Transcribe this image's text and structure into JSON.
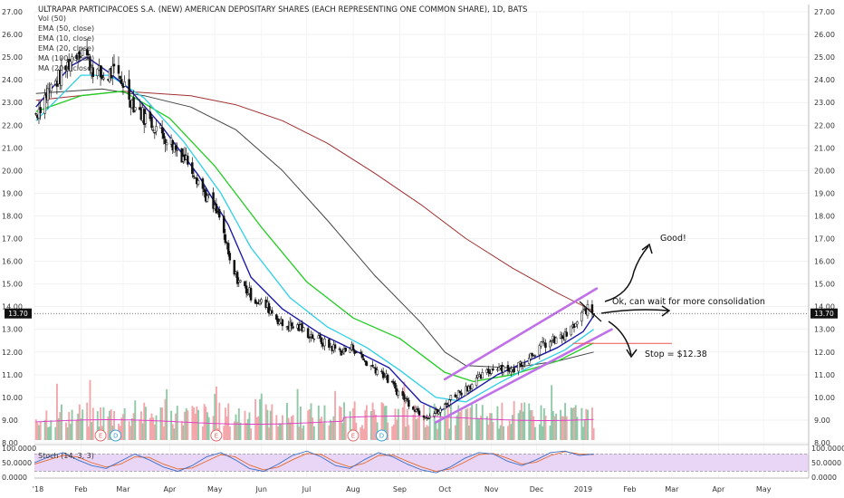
{
  "header": {
    "title": "ULTRAPAR PARTICIPACOES S.A. (NEW) AMERICAN DEPOSITARY SHARES (EACH REPRESENTING ONE COMMON SHARE), 1D, BATS"
  },
  "legend": {
    "items": [
      "Vol (50)",
      "EMA (50, close)",
      "EMA (10, close)",
      "EMA (20, close)",
      "MA (100, close)",
      "MA (200, close)"
    ]
  },
  "colors": {
    "up": "#26a69a",
    "down": "#ef5350",
    "candle": "#111111",
    "vol_up": "#8fc9a7",
    "vol_down": "#f3a7ab",
    "vol_ma": "#e040c8",
    "ema10": "#1a1aa6",
    "ema20": "#2ecfe8",
    "ema50": "#22cc22",
    "ma100": "#444444",
    "ma200": "#a03030",
    "channel": "#c070e8",
    "annotation": "#111111",
    "stoch_bg": "#e9d6f7",
    "stoch_k": "#3b6fc6",
    "stoch_d": "#e36a2e",
    "price_box": "#111111"
  },
  "current_price": {
    "label": "13.70",
    "value": 13.7
  },
  "annotations": {
    "good": "Good!",
    "consolidation": "Ok, can wait for more consolidation",
    "stop": "Stop = $12.38"
  },
  "events": {
    "badges": [
      "E",
      "D",
      "E",
      "E",
      "D"
    ]
  },
  "stoch": {
    "label": "Stoch (14, 3, 3)",
    "ticks": [
      "100.0000",
      "50.0000",
      "0.0000"
    ]
  },
  "chart_data": {
    "type": "candlestick",
    "title": "ULTRAPAR PARTICIPACOES S.A. (NEW) AMERICAN DEPOSITARY SHARES (EACH REPRESENTING ONE COMMON SHARE), 1D, BATS",
    "x_ticks": [
      "'18",
      "Feb",
      "Mar",
      "Apr",
      "May",
      "Jun",
      "Jul",
      "Aug",
      "Sep",
      "Oct",
      "Nov",
      "Dec",
      "2019",
      "Feb",
      "Mar",
      "Apr",
      "May"
    ],
    "y_ticks": [
      "27.00",
      "26.00",
      "25.00",
      "24.00",
      "23.00",
      "22.00",
      "21.00",
      "20.00",
      "19.00",
      "18.00",
      "17.00",
      "16.00",
      "15.00",
      "14.00",
      "13.00",
      "12.00",
      "11.00",
      "10.00",
      "9.00",
      "8.00"
    ],
    "ylim": [
      8,
      27
    ],
    "x_start": "2018-01-01",
    "x_end": "2019-05-31",
    "price_path": [
      [
        "2018-01-02",
        22.5
      ],
      [
        "2018-01-10",
        23.5
      ],
      [
        "2018-01-20",
        24.3
      ],
      [
        "2018-01-28",
        25.2
      ],
      [
        "2018-02-02",
        25.4
      ],
      [
        "2018-02-08",
        24.6
      ],
      [
        "2018-02-15",
        24.1
      ],
      [
        "2018-02-22",
        24.3
      ],
      [
        "2018-03-01",
        23.9
      ],
      [
        "2018-03-08",
        22.9
      ],
      [
        "2018-03-15",
        22.4
      ],
      [
        "2018-03-25",
        21.8
      ],
      [
        "2018-04-05",
        21.0
      ],
      [
        "2018-04-15",
        20.3
      ],
      [
        "2018-04-25",
        18.9
      ],
      [
        "2018-05-05",
        17.8
      ],
      [
        "2018-05-12",
        15.6
      ],
      [
        "2018-05-20",
        14.9
      ],
      [
        "2018-05-28",
        14.3
      ],
      [
        "2018-06-05",
        14.0
      ],
      [
        "2018-06-15",
        13.2
      ],
      [
        "2018-06-25",
        13.1
      ],
      [
        "2018-07-05",
        12.7
      ],
      [
        "2018-07-15",
        12.3
      ],
      [
        "2018-07-25",
        12.0
      ],
      [
        "2018-08-01",
        12.2
      ],
      [
        "2018-08-10",
        11.5
      ],
      [
        "2018-08-20",
        11.1
      ],
      [
        "2018-08-30",
        10.3
      ],
      [
        "2018-09-08",
        9.7
      ],
      [
        "2018-09-15",
        9.3
      ],
      [
        "2018-09-20",
        9.2
      ],
      [
        "2018-09-28",
        9.4
      ],
      [
        "2018-10-05",
        10.0
      ],
      [
        "2018-10-15",
        10.4
      ],
      [
        "2018-10-25",
        10.9
      ],
      [
        "2018-11-05",
        11.4
      ],
      [
        "2018-11-15",
        11.2
      ],
      [
        "2018-11-25",
        11.8
      ],
      [
        "2018-12-05",
        12.3
      ],
      [
        "2018-12-12",
        12.5
      ],
      [
        "2018-12-20",
        12.7
      ],
      [
        "2018-12-28",
        13.3
      ],
      [
        "2019-01-03",
        13.9
      ],
      [
        "2019-01-08",
        13.7
      ]
    ],
    "ema10": [
      [
        "2018-01-02",
        22.8
      ],
      [
        "2018-01-25",
        24.6
      ],
      [
        "2018-02-05",
        25.0
      ],
      [
        "2018-02-20",
        24.3
      ],
      [
        "2018-03-05",
        23.6
      ],
      [
        "2018-03-25",
        22.1
      ],
      [
        "2018-04-20",
        19.8
      ],
      [
        "2018-05-10",
        17.6
      ],
      [
        "2018-05-25",
        15.3
      ],
      [
        "2018-06-15",
        13.9
      ],
      [
        "2018-07-10",
        12.8
      ],
      [
        "2018-08-01",
        12.1
      ],
      [
        "2018-08-25",
        11.3
      ],
      [
        "2018-09-15",
        9.8
      ],
      [
        "2018-09-28",
        9.4
      ],
      [
        "2018-10-15",
        10.1
      ],
      [
        "2018-11-05",
        11.0
      ],
      [
        "2018-11-25",
        11.6
      ],
      [
        "2018-12-15",
        12.2
      ],
      [
        "2019-01-01",
        12.9
      ],
      [
        "2019-01-08",
        13.6
      ]
    ],
    "ema20": [
      [
        "2018-01-02",
        22.2
      ],
      [
        "2018-02-01",
        24.2
      ],
      [
        "2018-02-20",
        24.2
      ],
      [
        "2018-03-15",
        23.2
      ],
      [
        "2018-04-10",
        21.3
      ],
      [
        "2018-05-05",
        19.0
      ],
      [
        "2018-05-25",
        16.6
      ],
      [
        "2018-06-20",
        14.4
      ],
      [
        "2018-07-15",
        13.1
      ],
      [
        "2018-08-10",
        12.2
      ],
      [
        "2018-09-01",
        11.2
      ],
      [
        "2018-09-25",
        10.0
      ],
      [
        "2018-10-15",
        9.8
      ],
      [
        "2018-11-05",
        10.6
      ],
      [
        "2018-12-01",
        11.5
      ],
      [
        "2018-12-20",
        12.1
      ],
      [
        "2019-01-08",
        13.0
      ]
    ],
    "ema50": [
      [
        "2018-01-02",
        22.6
      ],
      [
        "2018-02-01",
        23.3
      ],
      [
        "2018-03-01",
        23.5
      ],
      [
        "2018-04-01",
        22.3
      ],
      [
        "2018-05-01",
        20.2
      ],
      [
        "2018-06-01",
        17.5
      ],
      [
        "2018-07-01",
        15.1
      ],
      [
        "2018-08-01",
        13.5
      ],
      [
        "2018-09-01",
        12.6
      ],
      [
        "2018-10-01",
        11.1
      ],
      [
        "2018-10-20",
        10.7
      ],
      [
        "2018-11-15",
        11.0
      ],
      [
        "2018-12-15",
        11.6
      ],
      [
        "2019-01-08",
        12.4
      ]
    ],
    "ma100": [
      [
        "2018-01-02",
        23.4
      ],
      [
        "2018-02-15",
        23.6
      ],
      [
        "2018-03-15",
        23.3
      ],
      [
        "2018-04-15",
        22.8
      ],
      [
        "2018-05-15",
        21.8
      ],
      [
        "2018-06-15",
        20.0
      ],
      [
        "2018-07-15",
        17.8
      ],
      [
        "2018-08-15",
        15.4
      ],
      [
        "2018-09-15",
        13.3
      ],
      [
        "2018-10-01",
        12.0
      ],
      [
        "2018-10-15",
        11.4
      ],
      [
        "2018-11-15",
        11.3
      ],
      [
        "2018-12-15",
        11.6
      ],
      [
        "2019-01-08",
        12.0
      ]
    ],
    "ma200": [
      [
        "2018-01-02",
        23.1
      ],
      [
        "2018-03-01",
        23.5
      ],
      [
        "2018-04-15",
        23.3
      ],
      [
        "2018-05-15",
        22.9
      ],
      [
        "2018-06-15",
        22.2
      ],
      [
        "2018-07-15",
        21.2
      ],
      [
        "2018-08-15",
        19.9
      ],
      [
        "2018-09-15",
        18.5
      ],
      [
        "2018-10-15",
        17.0
      ],
      [
        "2018-11-15",
        15.7
      ],
      [
        "2018-12-15",
        14.6
      ],
      [
        "2019-01-08",
        13.8
      ]
    ],
    "channel_upper": [
      [
        "2018-10-01",
        10.8
      ],
      [
        "2019-01-10",
        14.8
      ]
    ],
    "channel_lower": [
      [
        "2018-09-25",
        8.9
      ],
      [
        "2019-01-20",
        13.0
      ]
    ],
    "stop_level": 12.38,
    "stoch_series": {
      "k": [
        50,
        70,
        85,
        60,
        40,
        30,
        55,
        80,
        60,
        35,
        20,
        40,
        70,
        85,
        60,
        30,
        20,
        45,
        75,
        90,
        70,
        40,
        30,
        60,
        85,
        70,
        45,
        25,
        15,
        35,
        65,
        85,
        80,
        55,
        40,
        60,
        85,
        90,
        75,
        80
      ],
      "d": [
        45,
        60,
        75,
        70,
        50,
        35,
        45,
        70,
        68,
        45,
        28,
        32,
        55,
        78,
        70,
        42,
        25,
        35,
        60,
        82,
        78,
        52,
        35,
        48,
        75,
        76,
        55,
        35,
        20,
        28,
        52,
        78,
        82,
        65,
        45,
        52,
        75,
        88,
        80,
        78
      ]
    }
  }
}
